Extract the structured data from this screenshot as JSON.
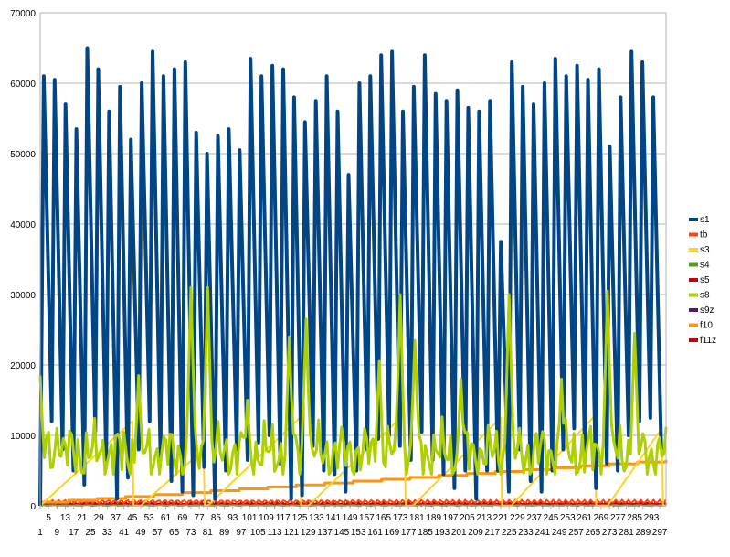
{
  "chart_data": {
    "type": "line",
    "title": "",
    "xlabel": "",
    "ylabel": "",
    "ylim": [
      0,
      70000
    ],
    "yticks": [
      "0",
      "10000",
      "20000",
      "30000",
      "40000",
      "50000",
      "60000",
      "70000"
    ],
    "xlim": [
      1,
      300
    ],
    "x_tick_step": 4,
    "grid": "horizontal",
    "legend_position": "right",
    "series": [
      {
        "name": "s1",
        "color": "#004586",
        "width": 4,
        "cycles": [
          [
            61000,
            12000
          ],
          [
            60500,
            8000
          ],
          [
            57000,
            5000
          ],
          [
            53500,
            3000
          ],
          [
            65000,
            10500
          ],
          [
            62000,
            6500
          ],
          [
            56000,
            1000
          ],
          [
            59500,
            4000
          ],
          [
            52000,
            8000
          ],
          [
            60000,
            12000
          ],
          [
            64500,
            7000
          ],
          [
            61000,
            3500
          ],
          [
            62000,
            2000
          ],
          [
            63000,
            1500
          ],
          [
            53000,
            5500
          ],
          [
            50000,
            1000
          ],
          [
            52500,
            5000
          ],
          [
            53500,
            8000
          ],
          [
            50500,
            6500
          ],
          [
            63500,
            9000
          ],
          [
            61000,
            10000
          ],
          [
            62500,
            6000
          ],
          [
            62000,
            1000
          ],
          [
            58000,
            1500
          ],
          [
            54500,
            8500
          ],
          [
            57500,
            5000
          ],
          [
            61000,
            4500
          ],
          [
            56000,
            2000
          ],
          [
            47000,
            5000
          ],
          [
            60000,
            8000
          ],
          [
            61000,
            9500
          ],
          [
            64000,
            10000
          ],
          [
            64500,
            8500
          ],
          [
            56000,
            6500
          ],
          [
            59500,
            10500
          ],
          [
            64000,
            6500
          ],
          [
            58500,
            4500
          ],
          [
            57500,
            2500
          ],
          [
            59000,
            5000
          ],
          [
            56500,
            1000
          ],
          [
            56000,
            5000
          ],
          [
            57500,
            5000
          ],
          [
            37500,
            2000
          ],
          [
            63000,
            8000
          ],
          [
            59500,
            3500
          ],
          [
            57000,
            2000
          ],
          [
            60000,
            5000
          ],
          [
            63500,
            8000
          ],
          [
            61000,
            11000
          ],
          [
            62500,
            6500
          ],
          [
            60500,
            2500
          ],
          [
            62000,
            6000
          ],
          [
            51000,
            5000
          ],
          [
            58000,
            10000
          ],
          [
            64500,
            12000
          ],
          [
            63000,
            12500
          ],
          [
            58000,
            8000
          ]
        ],
        "period": 5.2
      },
      {
        "name": "tb",
        "color": "#ff420e",
        "width": 2
      },
      {
        "name": "s3",
        "color": "#ffd320",
        "width": 2,
        "ramps": [
          [
            1,
            45,
            12000
          ],
          [
            49,
            79,
            8000
          ],
          [
            81,
            125,
            12500
          ],
          [
            129,
            175,
            13000
          ],
          [
            179,
            221,
            12500
          ],
          [
            226,
            266,
            12800
          ],
          [
            272,
            298,
            11000
          ]
        ]
      },
      {
        "name": "s4",
        "color": "#579d1c",
        "width": 2
      },
      {
        "name": "s5",
        "color": "#c5000b",
        "width": 2
      },
      {
        "name": "s8",
        "color": "#aecf00",
        "width": 3,
        "spikes": [
          [
            1,
            18500
          ],
          [
            9,
            11000
          ],
          [
            48,
            18500
          ],
          [
            73,
            31000
          ],
          [
            81,
            31000
          ],
          [
            100,
            15000
          ],
          [
            120,
            24000
          ],
          [
            128,
            26500
          ],
          [
            163,
            20500
          ],
          [
            173,
            30000
          ],
          [
            180,
            23500
          ],
          [
            202,
            18000
          ],
          [
            225,
            30000
          ],
          [
            250,
            18000
          ],
          [
            272,
            30500
          ],
          [
            285,
            24500
          ]
        ]
      },
      {
        "name": "s9z",
        "color": "#4b1f6f",
        "width": 2
      },
      {
        "name": "f10",
        "color": "#ff950e",
        "width": 3,
        "end": 6500
      },
      {
        "name": "f11z",
        "color": "#c5000b",
        "width": 3
      }
    ]
  }
}
